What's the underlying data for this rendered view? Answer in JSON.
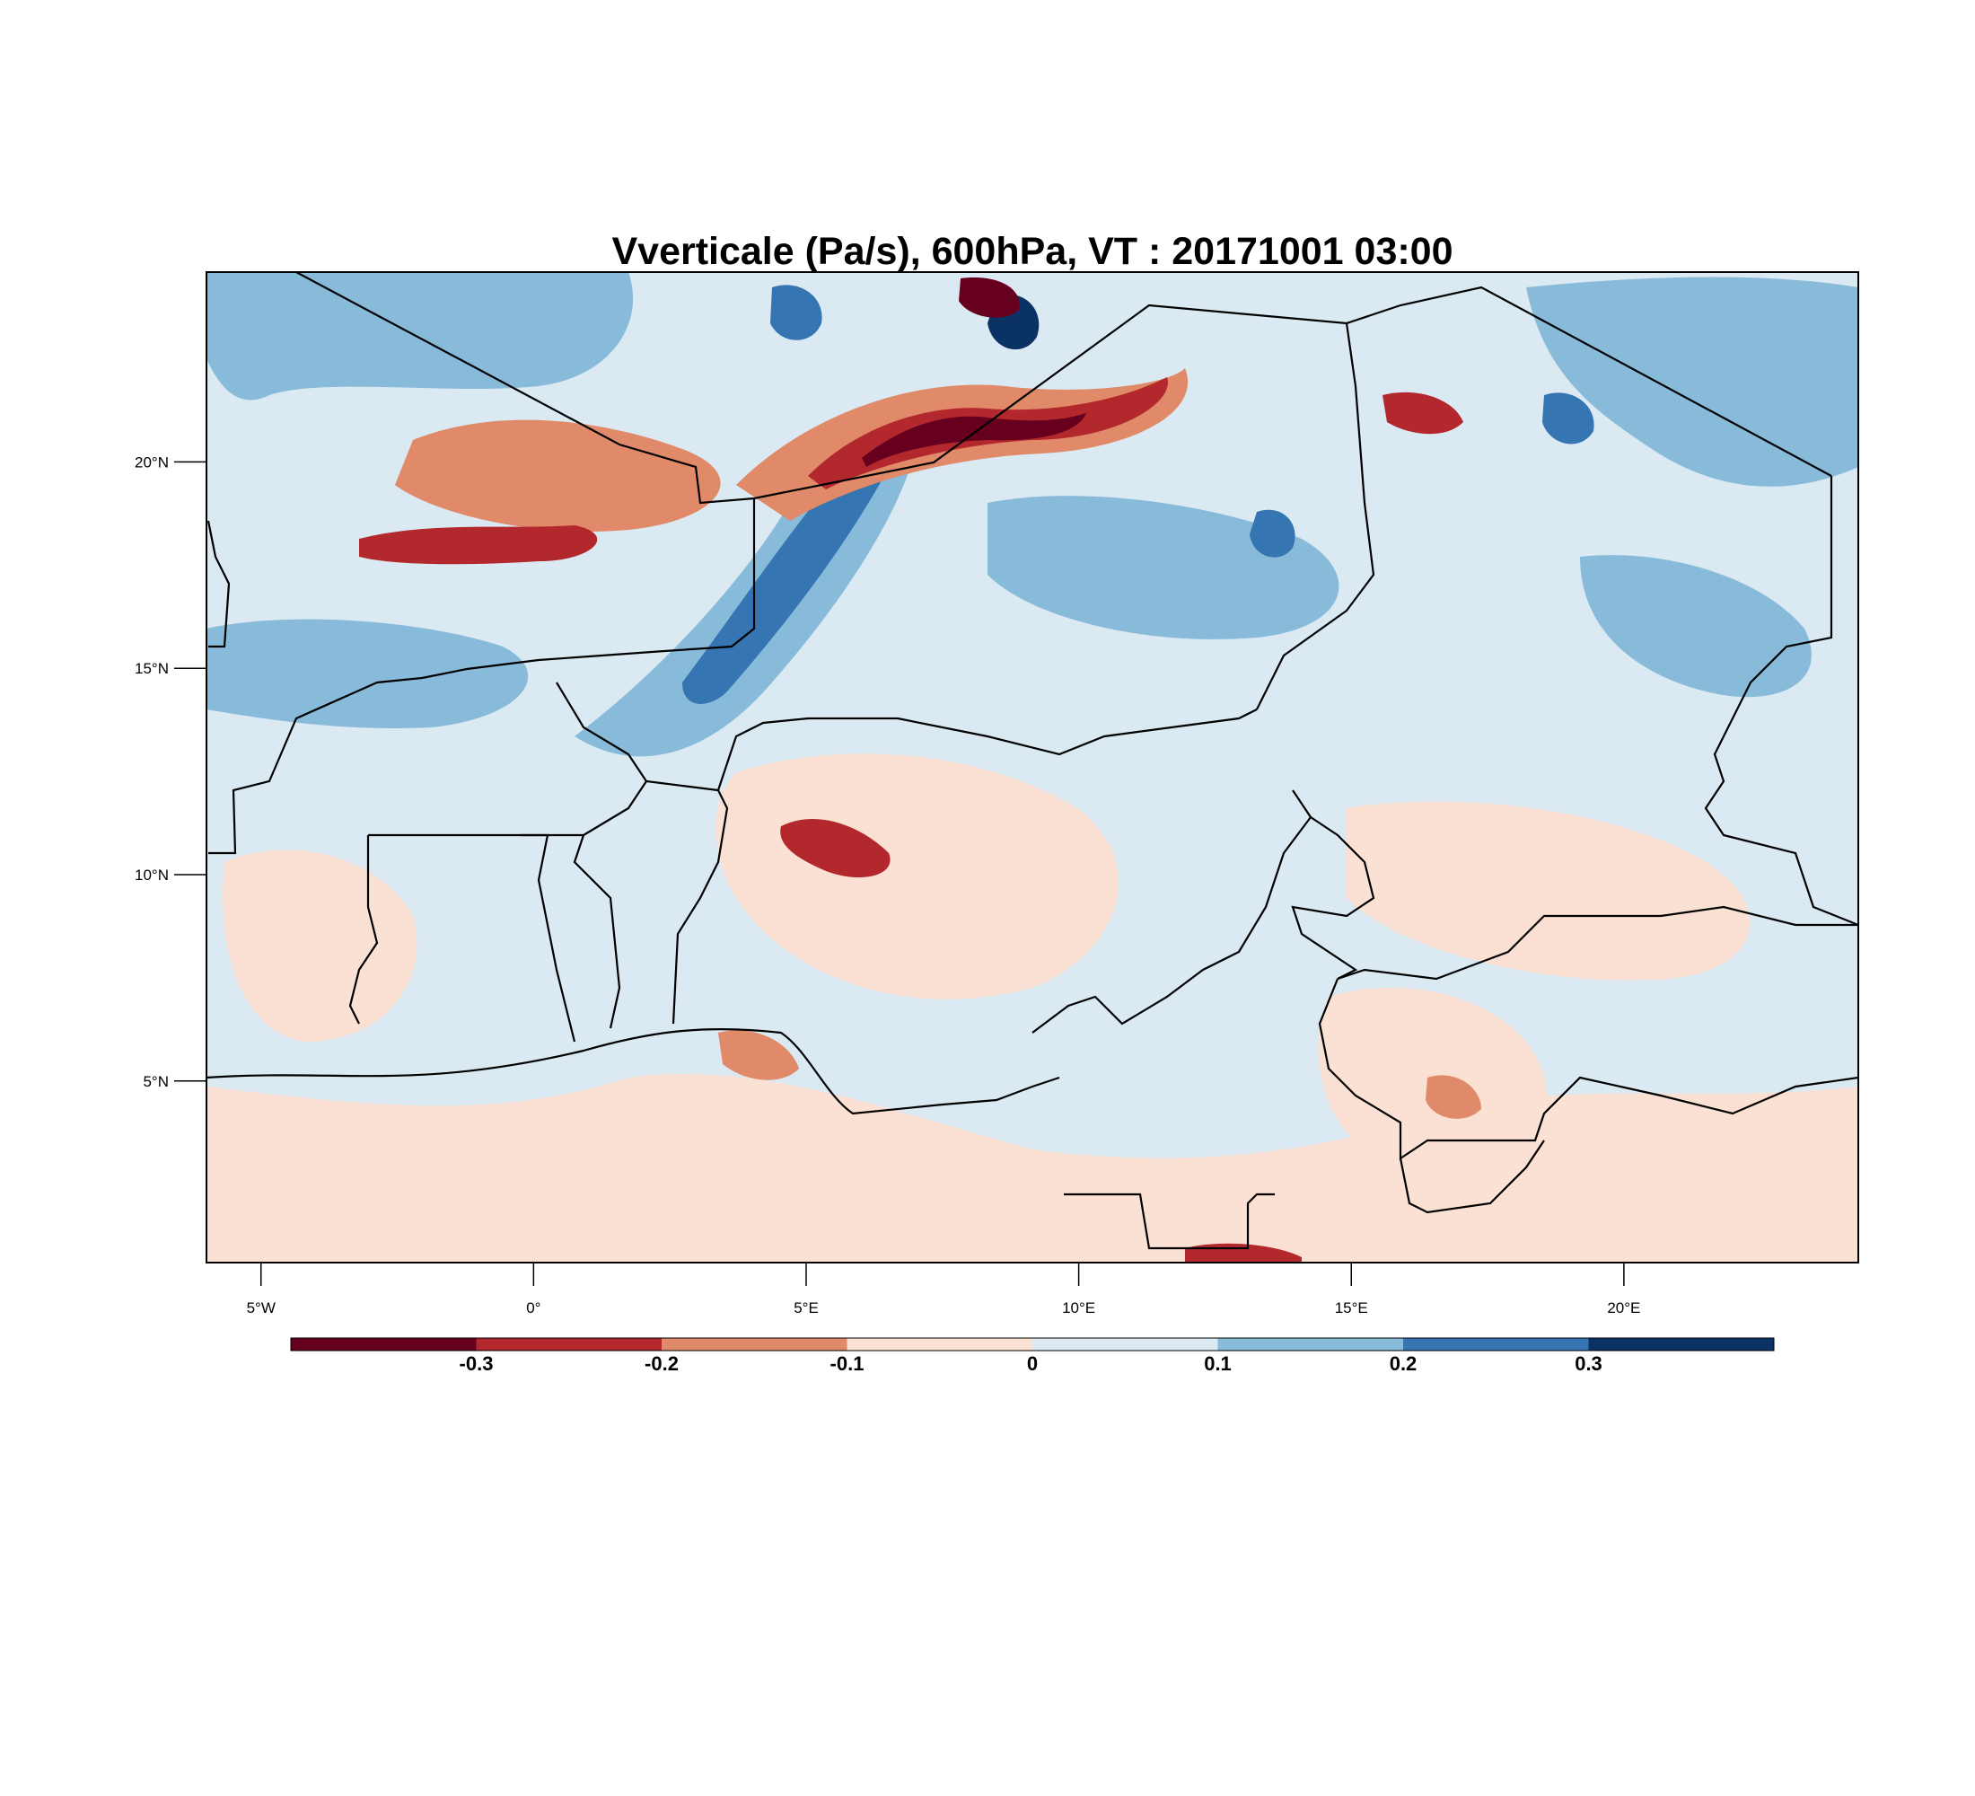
{
  "title": "Vverticale (Pa/s), 600hPa, VT : 20171001  03:00",
  "map": {
    "lon_range": [
      -6,
      24.3
    ],
    "lat_range": [
      0.6,
      24.6
    ],
    "lat_ticks": [
      {
        "value": 20,
        "label": "20°N"
      },
      {
        "value": 15,
        "label": "15°N"
      },
      {
        "value": 10,
        "label": "10°N"
      },
      {
        "value": 5,
        "label": "5°N"
      }
    ],
    "lon_ticks": [
      {
        "value": -5,
        "label": "5°W"
      },
      {
        "value": 0,
        "label": "0°"
      },
      {
        "value": 5,
        "label": "5°E"
      },
      {
        "value": 10,
        "label": "10°E"
      },
      {
        "value": 15,
        "label": "15°E"
      },
      {
        "value": 20,
        "label": "20°E"
      }
    ],
    "background_class_color": "#dbe9f2"
  },
  "colorbar": {
    "colors": [
      "#67001f",
      "#b2282c",
      "#e08a6a",
      "#fbe1d3",
      "#dbe9f2",
      "#88bbd9",
      "#3475b2",
      "#0b3265"
    ],
    "labels": [
      "-0.3",
      "-0.2",
      "-0.1",
      "0",
      "0.1",
      "0.2",
      "0.3"
    ]
  }
}
